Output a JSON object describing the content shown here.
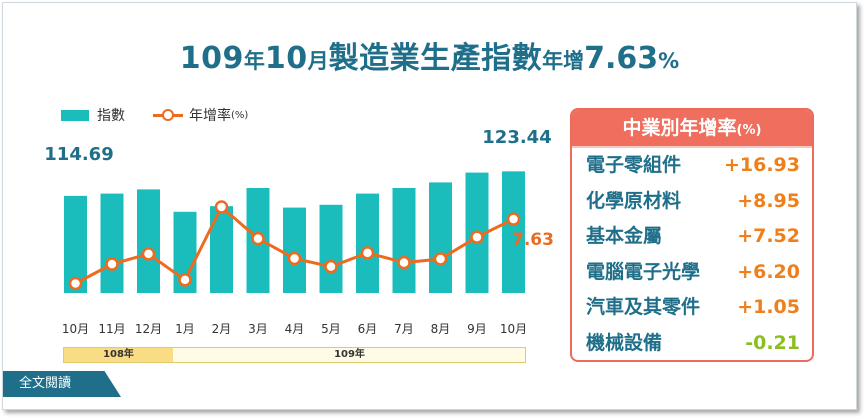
{
  "title": {
    "p1": "109",
    "p2": "年",
    "p3": "10",
    "p4": "月",
    "p5": "製造業生產指數",
    "p6": "年增",
    "p7": "7.63",
    "p8": "%"
  },
  "legend": {
    "bar_label": "指數",
    "line_label": "年增率",
    "line_unit": "(%)"
  },
  "colors": {
    "bar": "#1bbcbc",
    "line": "#ec6b1f",
    "title": "#1f6f8b",
    "panel_header": "#f06e5e",
    "positive": "#ee7f1a",
    "negative": "#8abf1f"
  },
  "chart_data": {
    "type": "bar",
    "categories": [
      "10月",
      "11月",
      "12月",
      "1月",
      "2月",
      "3月",
      "4月",
      "5月",
      "6月",
      "7月",
      "8月",
      "9月",
      "10月"
    ],
    "series": [
      {
        "name": "指數",
        "type": "bar",
        "values": [
          114.69,
          115.5,
          117.0,
          109.0,
          111.0,
          117.5,
          110.5,
          111.5,
          115.5,
          117.5,
          119.5,
          123.0,
          123.44
        ]
      },
      {
        "name": "年增率",
        "type": "line",
        "values": [
          -5.0,
          -1.2,
          0.8,
          -4.3,
          10.0,
          3.8,
          -0.1,
          -1.7,
          1.0,
          -0.9,
          -0.2,
          4.1,
          7.63
        ]
      }
    ],
    "data_labels": {
      "first_bar": "114.69",
      "last_bar": "123.44",
      "last_line": "7.63"
    },
    "year_groups": [
      {
        "label": "108年",
        "span": 3
      },
      {
        "label": "109年",
        "span": 10
      }
    ]
  },
  "panel": {
    "title": "中業別年增率",
    "unit": "(%)",
    "rows": [
      {
        "name": "電子零組件",
        "value": "+16.93"
      },
      {
        "name": "化學原材料",
        "value": "+8.95"
      },
      {
        "name": "基本金屬",
        "value": "+7.52"
      },
      {
        "name": "電腦電子光學",
        "value": "+6.20"
      },
      {
        "name": "汽車及其零件",
        "value": "+1.05"
      },
      {
        "name": "機械設備",
        "value": "-0.21"
      }
    ]
  },
  "button": {
    "label": "全文閱讀"
  }
}
